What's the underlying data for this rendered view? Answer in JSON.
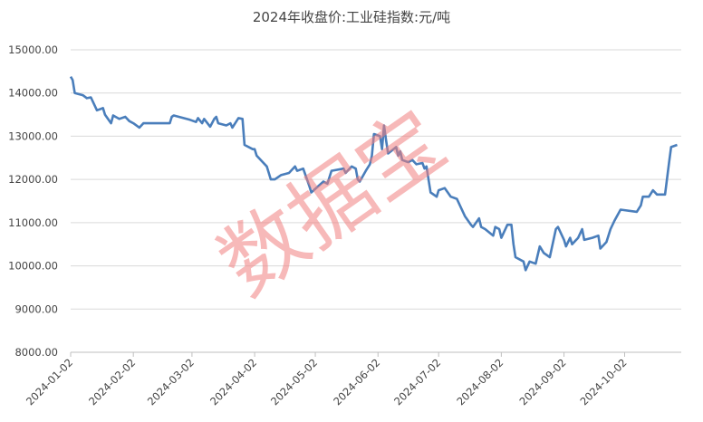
{
  "chart_data": {
    "type": "line",
    "title": "2024年收盘价:工业硅指数:元/吨",
    "watermark": "数据宝",
    "color": "#4a7ebb",
    "grid": true,
    "x": [
      "2024-01-02",
      "2024-01-03",
      "2024-01-04",
      "2024-01-08",
      "2024-01-10",
      "2024-01-12",
      "2024-01-15",
      "2024-01-18",
      "2024-01-19",
      "2024-01-22",
      "2024-01-23",
      "2024-01-26",
      "2024-01-29",
      "2024-01-31",
      "2024-02-02",
      "2024-02-05",
      "2024-02-07",
      "2024-02-20",
      "2024-02-21",
      "2024-02-22",
      "2024-03-01",
      "2024-03-04",
      "2024-03-05",
      "2024-03-07",
      "2024-03-08",
      "2024-03-11",
      "2024-03-13",
      "2024-03-14",
      "2024-03-15",
      "2024-03-19",
      "2024-03-21",
      "2024-03-22",
      "2024-03-25",
      "2024-03-27",
      "2024-03-28",
      "2024-04-01",
      "2024-04-02",
      "2024-04-03",
      "2024-04-08",
      "2024-04-10",
      "2024-04-12",
      "2024-04-15",
      "2024-04-19",
      "2024-04-22",
      "2024-04-23",
      "2024-04-26",
      "2024-04-29",
      "2024-04-30",
      "2024-05-06",
      "2024-05-08",
      "2024-05-10",
      "2024-05-16",
      "2024-05-17",
      "2024-05-20",
      "2024-05-22",
      "2024-05-23",
      "2024-05-24",
      "2024-05-27",
      "2024-05-29",
      "2024-05-30",
      "2024-05-31",
      "2024-06-03",
      "2024-06-04",
      "2024-06-05",
      "2024-06-06",
      "2024-06-07",
      "2024-06-11",
      "2024-06-12",
      "2024-06-13",
      "2024-06-14",
      "2024-06-17",
      "2024-06-19",
      "2024-06-21",
      "2024-06-24",
      "2024-06-25",
      "2024-06-26",
      "2024-06-27",
      "2024-06-28",
      "2024-07-01",
      "2024-07-02",
      "2024-07-05",
      "2024-07-08",
      "2024-07-11",
      "2024-07-15",
      "2024-07-18",
      "2024-07-19",
      "2024-07-22",
      "2024-07-23",
      "2024-07-25",
      "2024-07-29",
      "2024-07-30",
      "2024-08-01",
      "2024-08-02",
      "2024-08-05",
      "2024-08-07",
      "2024-08-08",
      "2024-08-09",
      "2024-08-13",
      "2024-08-14",
      "2024-08-16",
      "2024-08-19",
      "2024-08-21",
      "2024-08-23",
      "2024-08-26",
      "2024-08-29",
      "2024-08-30",
      "2024-09-02",
      "2024-09-03",
      "2024-09-05",
      "2024-09-06",
      "2024-09-09",
      "2024-09-11",
      "2024-09-12",
      "2024-09-16",
      "2024-09-19",
      "2024-09-20",
      "2024-09-23",
      "2024-09-25",
      "2024-09-27",
      "2024-09-30",
      "2024-10-08",
      "2024-10-10",
      "2024-10-11",
      "2024-10-14",
      "2024-10-16",
      "2024-10-18",
      "2024-10-22",
      "2024-10-24",
      "2024-10-25",
      "2024-10-28"
    ],
    "values": [
      14380,
      14300,
      14000,
      13950,
      13880,
      13900,
      13600,
      13650,
      13500,
      13300,
      13480,
      13400,
      13450,
      13350,
      13300,
      13200,
      13300,
      13300,
      13450,
      13480,
      13380,
      13330,
      13420,
      13300,
      13400,
      13220,
      13400,
      13450,
      13300,
      13250,
      13300,
      13200,
      13420,
      13400,
      12800,
      12700,
      12700,
      12550,
      12300,
      12000,
      12000,
      12100,
      12150,
      12300,
      12200,
      12250,
      11850,
      11700,
      11950,
      11900,
      12200,
      12250,
      12150,
      12300,
      12250,
      12000,
      11950,
      12200,
      12350,
      12550,
      13050,
      13000,
      12700,
      13250,
      12900,
      12600,
      12750,
      12550,
      12650,
      12450,
      12400,
      12450,
      12350,
      12380,
      12250,
      12300,
      12000,
      11700,
      11600,
      11750,
      11800,
      11600,
      11550,
      11150,
      10950,
      10900,
      11100,
      10900,
      10850,
      10700,
      10900,
      10850,
      10650,
      10950,
      10950,
      10500,
      10200,
      10100,
      9900,
      10100,
      10050,
      10450,
      10300,
      10200,
      10850,
      10900,
      10600,
      10450,
      10650,
      10500,
      10650,
      10850,
      10600,
      10650,
      10700,
      10400,
      10550,
      10850,
      11050,
      11300,
      11250,
      11400,
      11600,
      11600,
      11750,
      11650,
      11650,
      12400,
      12750,
      12800
    ],
    "xlim": [
      "2024-01-02",
      "2024-10-30"
    ],
    "xticks": [
      "2024-01-02",
      "2024-02-02",
      "2024-03-02",
      "2024-04-02",
      "2024-05-02",
      "2024-06-02",
      "2024-07-02",
      "2024-08-02",
      "2024-09-02",
      "2024-10-02"
    ],
    "ylim": [
      8000,
      15000
    ],
    "yticks": [
      {
        "value": 8000,
        "label": "8000.00"
      },
      {
        "value": 9000,
        "label": "9000.00"
      },
      {
        "value": 10000,
        "label": "10000.00"
      },
      {
        "value": 11000,
        "label": "11000.00"
      },
      {
        "value": 12000,
        "label": "12000.00"
      },
      {
        "value": 13000,
        "label": "13000.00"
      },
      {
        "value": 14000,
        "label": "14000.00"
      },
      {
        "value": 15000,
        "label": "15000.00"
      }
    ]
  }
}
